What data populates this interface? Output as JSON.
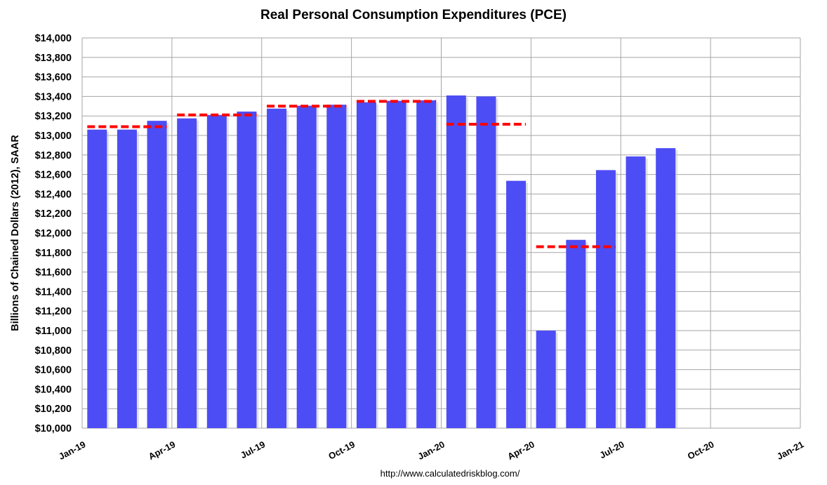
{
  "chart_data": {
    "type": "bar",
    "title": "Real Personal Consumption Expenditures (PCE)",
    "ylabel": "Billions of Chained Dollars (2012), SAAR",
    "xlabel": "",
    "source": "http://www.calculatedriskblog.com/",
    "ylim": [
      10000,
      14000
    ],
    "ytick_step": 200,
    "ytick_labels": [
      "$10,000",
      "$10,200",
      "$10,400",
      "$10,600",
      "$10,800",
      "$11,000",
      "$11,200",
      "$11,400",
      "$11,600",
      "$11,800",
      "$12,000",
      "$12,200",
      "$12,400",
      "$12,600",
      "$12,800",
      "$13,000",
      "$13,200",
      "$13,400",
      "$13,600",
      "$13,800",
      "$14,000"
    ],
    "xtick_labels": [
      "Jan-19",
      "Apr-19",
      "Jul-19",
      "Oct-19",
      "Jan-20",
      "Apr-20",
      "Jul-20",
      "Oct-20",
      "Jan-21"
    ],
    "months": [
      "Jan-19",
      "Feb-19",
      "Mar-19",
      "Apr-19",
      "May-19",
      "Jun-19",
      "Jul-19",
      "Aug-19",
      "Sep-19",
      "Oct-19",
      "Nov-19",
      "Dec-19",
      "Jan-20",
      "Feb-20",
      "Mar-20",
      "Apr-20",
      "May-20",
      "Jun-20",
      "Jul-20",
      "Aug-20"
    ],
    "values": [
      13060,
      13060,
      13150,
      13175,
      13210,
      13245,
      13275,
      13305,
      13315,
      13340,
      13355,
      13360,
      13410,
      13400,
      12535,
      11000,
      11930,
      12645,
      12785,
      12870
    ],
    "quarterly_averages": [
      {
        "quarter": "Q1-19",
        "value": 13090
      },
      {
        "quarter": "Q2-19",
        "value": 13210
      },
      {
        "quarter": "Q3-19",
        "value": 13300
      },
      {
        "quarter": "Q4-19",
        "value": 13350
      },
      {
        "quarter": "Q1-20",
        "value": 13115
      },
      {
        "quarter": "Q2-20",
        "value": 11860
      }
    ],
    "grid": true,
    "colors": {
      "bar": "#4d4df5",
      "bar_shadow": "#c8c8c8",
      "quarter_line": "#ff0000",
      "grid": "#a6a6a6"
    }
  }
}
